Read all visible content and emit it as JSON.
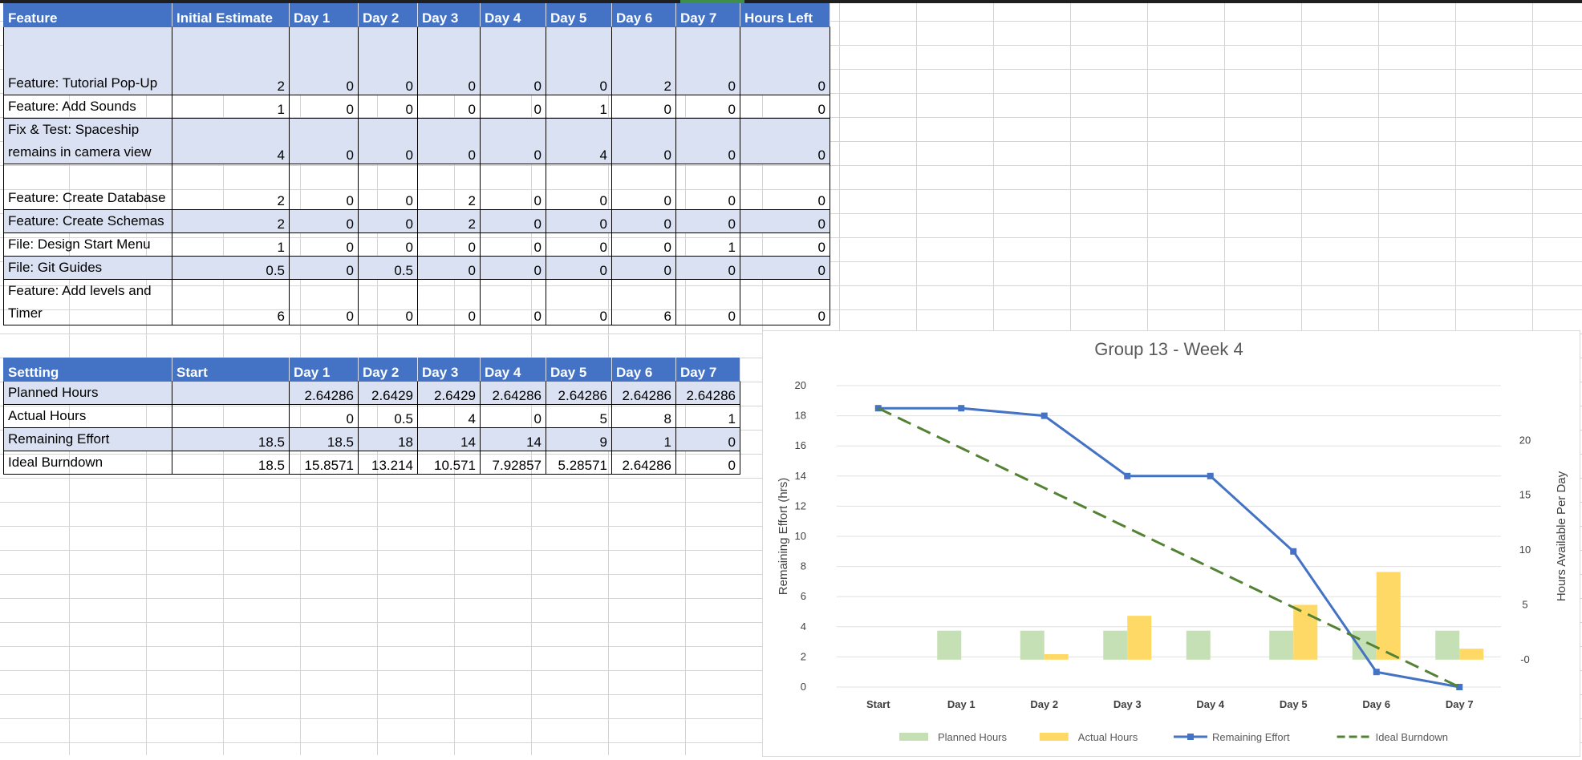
{
  "features_table": {
    "headers": [
      "Feature",
      "Initial Estimate",
      "Day 1",
      "Day 2",
      "Day 3",
      "Day 4",
      "Day 5",
      "Day 6",
      "Day 7",
      "Hours Left"
    ],
    "rows": [
      {
        "label": "Feature: Tutorial Pop-Up",
        "values": [
          "2",
          "0",
          "0",
          "0",
          "0",
          "0",
          "2",
          "0",
          "0"
        ]
      },
      {
        "label": "Feature: Add Sounds",
        "values": [
          "1",
          "0",
          "0",
          "0",
          "0",
          "1",
          "0",
          "0",
          "0"
        ]
      },
      {
        "label": "Fix & Test: Spaceship remains in camera view",
        "values": [
          "4",
          "0",
          "0",
          "0",
          "0",
          "4",
          "0",
          "0",
          "0"
        ]
      },
      {
        "label": "Feature: Create Database",
        "values": [
          "2",
          "0",
          "0",
          "2",
          "0",
          "0",
          "0",
          "0",
          "0"
        ]
      },
      {
        "label": "Feature: Create Schemas",
        "values": [
          "2",
          "0",
          "0",
          "2",
          "0",
          "0",
          "0",
          "0",
          "0"
        ]
      },
      {
        "label": "File: Design Start Menu",
        "values": [
          "1",
          "0",
          "0",
          "0",
          "0",
          "0",
          "0",
          "1",
          "0"
        ]
      },
      {
        "label": "File: Git Guides",
        "values": [
          "0.5",
          "0",
          "0.5",
          "0",
          "0",
          "0",
          "0",
          "0",
          "0"
        ]
      },
      {
        "label": "Feature: Add levels and Timer",
        "values": [
          "6",
          "0",
          "0",
          "0",
          "0",
          "0",
          "6",
          "0",
          "0"
        ]
      }
    ]
  },
  "settings_table": {
    "headers": [
      "Settting",
      "Start",
      "Day 1",
      "Day 2",
      "Day 3",
      "Day 4",
      "Day 5",
      "Day 6",
      "Day 7"
    ],
    "rows": [
      {
        "label": "Planned Hours",
        "values": [
          "",
          "2.64286",
          "2.6429",
          "2.6429",
          "2.64286",
          "2.64286",
          "2.64286",
          "2.64286"
        ]
      },
      {
        "label": "Actual Hours",
        "values": [
          "",
          "0",
          "0.5",
          "4",
          "0",
          "5",
          "8",
          "1"
        ]
      },
      {
        "label": "Remaining Effort",
        "values": [
          "18.5",
          "18.5",
          "18",
          "14",
          "14",
          "9",
          "1",
          "0"
        ]
      },
      {
        "label": "Ideal Burndown",
        "values": [
          "18.5",
          "15.8571",
          "13.214",
          "10.571",
          "7.92857",
          "5.28571",
          "2.64286",
          "0"
        ]
      }
    ]
  },
  "chart_data": {
    "type": "bar",
    "title": "Group 13 - Week 4",
    "categories": [
      "Start",
      "Day 1",
      "Day 2",
      "Day 3",
      "Day 4",
      "Day 5",
      "Day 6",
      "Day 7"
    ],
    "ylabel": "Remaining Effort (hrs)",
    "y2label": "Hours Available Per Day",
    "ylim": [
      0,
      20
    ],
    "yticks": [
      "0",
      "2",
      "4",
      "6",
      "8",
      "10",
      "12",
      "14",
      "16",
      "18",
      "20"
    ],
    "y2lim": [
      -2.5,
      25
    ],
    "y2ticks": [
      {
        "value": 0,
        "label": "-0"
      },
      {
        "value": 5,
        "label": "5"
      },
      {
        "value": 10,
        "label": "10"
      },
      {
        "value": 15,
        "label": "15"
      },
      {
        "value": 20,
        "label": "20"
      }
    ],
    "series": [
      {
        "name": "Planned Hours",
        "kind": "bar",
        "axis": "secondary",
        "color": "#c5e0b4",
        "values": [
          null,
          2.64286,
          2.6429,
          2.6429,
          2.64286,
          2.64286,
          2.64286,
          2.64286
        ]
      },
      {
        "name": "Actual Hours",
        "kind": "bar",
        "axis": "secondary",
        "color": "#ffd966",
        "values": [
          null,
          0,
          0.5,
          4,
          0,
          5,
          8,
          1
        ]
      },
      {
        "name": "Remaining Effort",
        "kind": "line",
        "axis": "primary",
        "color": "#4472c4",
        "values": [
          18.5,
          18.5,
          18,
          14,
          14,
          9,
          1,
          0
        ]
      },
      {
        "name": "Ideal Burndown",
        "kind": "dashed-line",
        "axis": "primary",
        "color": "#548235",
        "values": [
          18.5,
          15.8571,
          13.214,
          10.571,
          7.92857,
          5.28571,
          2.64286,
          0
        ]
      }
    ],
    "grid": true,
    "legend": "bottom"
  }
}
